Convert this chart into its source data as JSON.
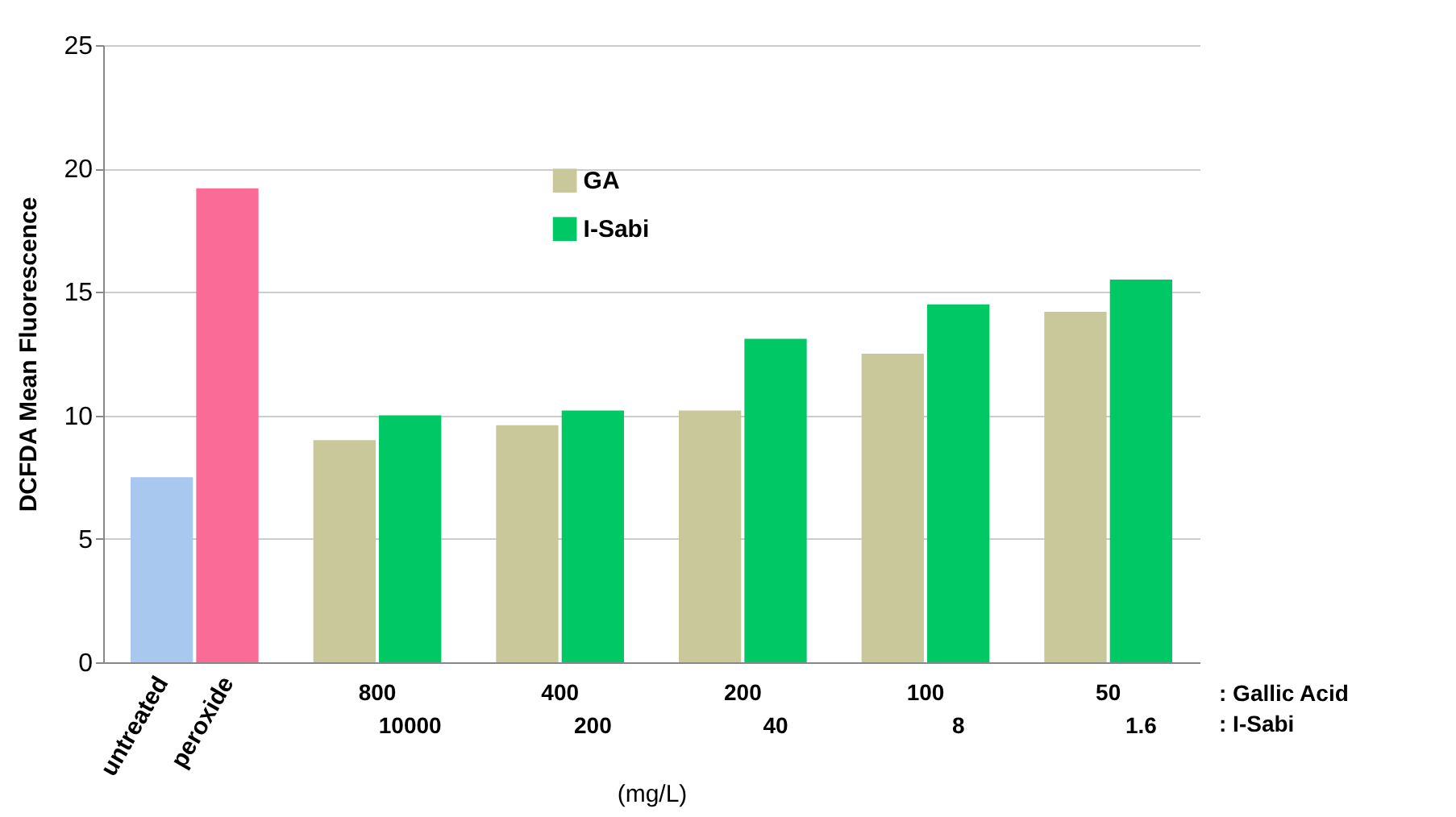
{
  "chart_data": {
    "type": "bar",
    "ylabel": "DCFDA Mean Fluorescence",
    "xlabel": "(mg/L)",
    "categories": [
      null,
      "800",
      "400",
      "200",
      "100",
      "50"
    ],
    "series": [
      {
        "name": "GA",
        "color": "#c8c89a",
        "colors": [
          "#a9c8f0",
          "#c8c89a",
          "#c8c89a",
          "#c8c89a",
          "#c8c89a",
          "#c8c89a"
        ],
        "values": [
          7.5,
          9.0,
          9.6,
          10.2,
          12.5,
          14.2
        ]
      },
      {
        "name": "I-Sabi",
        "color": "#00c864",
        "colors": [
          "#fb6b97",
          "#00c864",
          "#00c864",
          "#00c864",
          "#00c864",
          "#00c864"
        ],
        "values": [
          19.2,
          10.0,
          10.2,
          13.1,
          14.5,
          15.5
        ]
      }
    ],
    "ylim": [
      0,
      25
    ],
    "yticks": [
      0,
      5,
      10,
      15,
      20,
      25
    ],
    "grid": "y",
    "legend": "top",
    "annotations": [
      "untreated",
      "peroxide",
      ": Gallic Acid",
      ": I-Sabi",
      "10000",
      "200",
      "40",
      "8",
      "1.6"
    ]
  }
}
